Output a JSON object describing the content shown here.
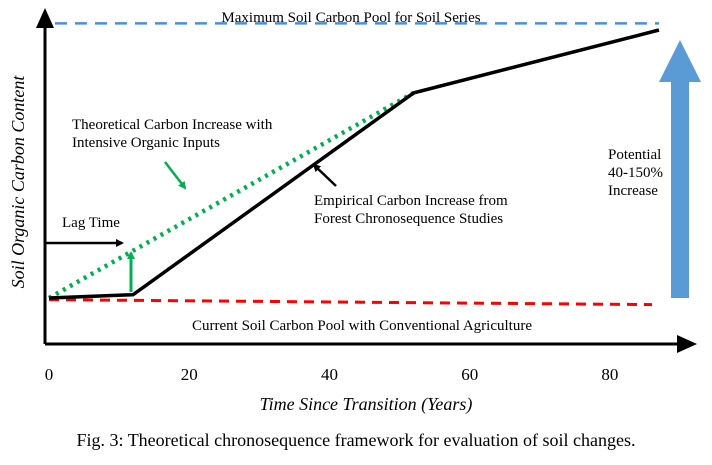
{
  "chart_data": {
    "type": "line",
    "title": "Maximum Soil Carbon Pool for Soil Series",
    "xlabel": "Time Since Transition (Years)",
    "ylabel": "Soil Organic Carbon Content",
    "xlim": [
      0,
      90
    ],
    "ylim": [
      0,
      100
    ],
    "xticks": [
      "0",
      "20",
      "40",
      "60",
      "80"
    ],
    "xtick_values": [
      0,
      20,
      40,
      60,
      80
    ],
    "series": [
      {
        "name": "Empirical Carbon Increase from Forest Chronosequence Studies",
        "color": "#000000",
        "style": "solid",
        "points": [
          [
            0,
            18
          ],
          [
            12,
            19
          ],
          [
            52,
            80
          ],
          [
            87,
            99
          ]
        ]
      },
      {
        "name": "Theoretical Carbon Increase with Intensive Organic Inputs",
        "color": "#00b050",
        "style": "dotted",
        "points": [
          [
            0,
            18
          ],
          [
            52,
            80
          ]
        ]
      }
    ],
    "reference_lines": [
      {
        "name": "Maximum Soil Carbon Pool for Soil Series",
        "color": "#4a90d9",
        "style": "dashed",
        "y": 101
      },
      {
        "name": "Current Soil Carbon Pool with Conventional Agriculture",
        "color": "#ff0000",
        "style": "dashed",
        "y_start": 17.5,
        "y_end": 16
      }
    ],
    "annotations": {
      "max_pool": "Maximum Soil Carbon Pool for Soil Series",
      "current_pool": "Current Soil Carbon Pool with Conventional Agriculture",
      "theoretical_line1": "Theoretical Carbon Increase with",
      "theoretical_line2": "Intensive Organic Inputs",
      "empirical_line1": "Empirical Carbon Increase from",
      "empirical_line2": "Forest Chronosequence Studies",
      "lag_time": "Lag Time",
      "lag_time_years": 12,
      "potential_line1": "Potential",
      "potential_line2": "40-150%",
      "potential_line3": "Increase"
    },
    "colors": {
      "empirical": "#000000",
      "theoretical": "#00b050",
      "max_pool": "#4a90d9",
      "current_pool": "#ff0000",
      "potential_arrow": "#5b9bd5"
    }
  },
  "caption": "Fig. 3: Theoretical chronosequence framework for evaluation of soil changes."
}
